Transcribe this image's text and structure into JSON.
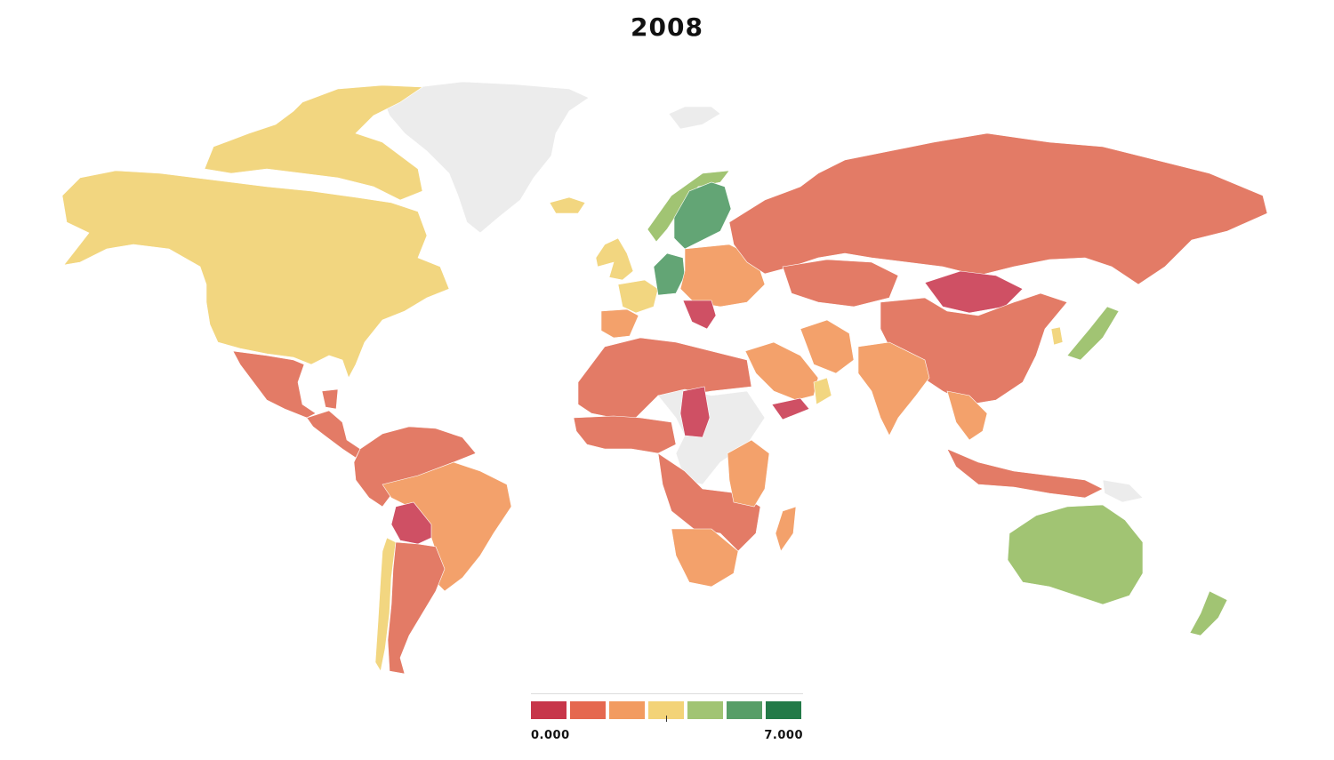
{
  "title": "2008",
  "legend": {
    "min_label": "0.000",
    "max_label": "7.000",
    "colors": [
      "#c7364a",
      "#e5684f",
      "#f29b60",
      "#f3d378",
      "#a1c473",
      "#579e67",
      "#237a48"
    ]
  },
  "map": {
    "no_data_color": "#ececec",
    "regions": [
      {
        "id": "canada-arctic",
        "color": "#f2d680"
      },
      {
        "id": "north-america",
        "color": "#f2d680"
      },
      {
        "id": "greenland",
        "color": "#ececec"
      },
      {
        "id": "iceland",
        "color": "#f2d680"
      },
      {
        "id": "svalbard",
        "color": "#ececec"
      },
      {
        "id": "mexico",
        "color": "#e37b66"
      },
      {
        "id": "central-america",
        "color": "#e37b66"
      },
      {
        "id": "caribbean",
        "color": "#e37b66"
      },
      {
        "id": "south-america-north",
        "color": "#e37b66"
      },
      {
        "id": "brazil",
        "color": "#f3a16b"
      },
      {
        "id": "bolivia",
        "color": "#cf5064"
      },
      {
        "id": "chile",
        "color": "#f2d680"
      },
      {
        "id": "argentina",
        "color": "#e37b66"
      },
      {
        "id": "uk-ireland",
        "color": "#f2d680"
      },
      {
        "id": "western-europe",
        "color": "#f2d680"
      },
      {
        "id": "iberia",
        "color": "#f3a16b"
      },
      {
        "id": "nordics",
        "color": "#63a575"
      },
      {
        "id": "norway",
        "color": "#a1c473"
      },
      {
        "id": "germany",
        "color": "#63a575"
      },
      {
        "id": "eastern-europe",
        "color": "#f3a16b"
      },
      {
        "id": "balkans",
        "color": "#cf5064"
      },
      {
        "id": "russia",
        "color": "#e37b66"
      },
      {
        "id": "kazakhstan",
        "color": "#e37b66"
      },
      {
        "id": "mongolia",
        "color": "#cf5064"
      },
      {
        "id": "china",
        "color": "#e37b66"
      },
      {
        "id": "middle-east",
        "color": "#f3a16b"
      },
      {
        "id": "iran",
        "color": "#f3a16b"
      },
      {
        "id": "oman",
        "color": "#f2d680"
      },
      {
        "id": "yemen",
        "color": "#cf5064"
      },
      {
        "id": "india",
        "color": "#f3a16b"
      },
      {
        "id": "southeast-asia",
        "color": "#f3a16b"
      },
      {
        "id": "indonesia",
        "color": "#e37b66"
      },
      {
        "id": "korea",
        "color": "#f2d680"
      },
      {
        "id": "japan",
        "color": "#a1c473"
      },
      {
        "id": "north-africa",
        "color": "#e37b66"
      },
      {
        "id": "chad",
        "color": "#cf5064"
      },
      {
        "id": "sahel-nodata",
        "color": "#ececec"
      },
      {
        "id": "west-africa",
        "color": "#e37b66"
      },
      {
        "id": "central-africa",
        "color": "#e37b66"
      },
      {
        "id": "east-africa",
        "color": "#f3a16b"
      },
      {
        "id": "southern-africa",
        "color": "#f3a16b"
      },
      {
        "id": "madagascar",
        "color": "#f3a16b"
      },
      {
        "id": "australia",
        "color": "#a1c473"
      },
      {
        "id": "new-zealand",
        "color": "#a1c473"
      },
      {
        "id": "png",
        "color": "#ececec"
      }
    ]
  }
}
